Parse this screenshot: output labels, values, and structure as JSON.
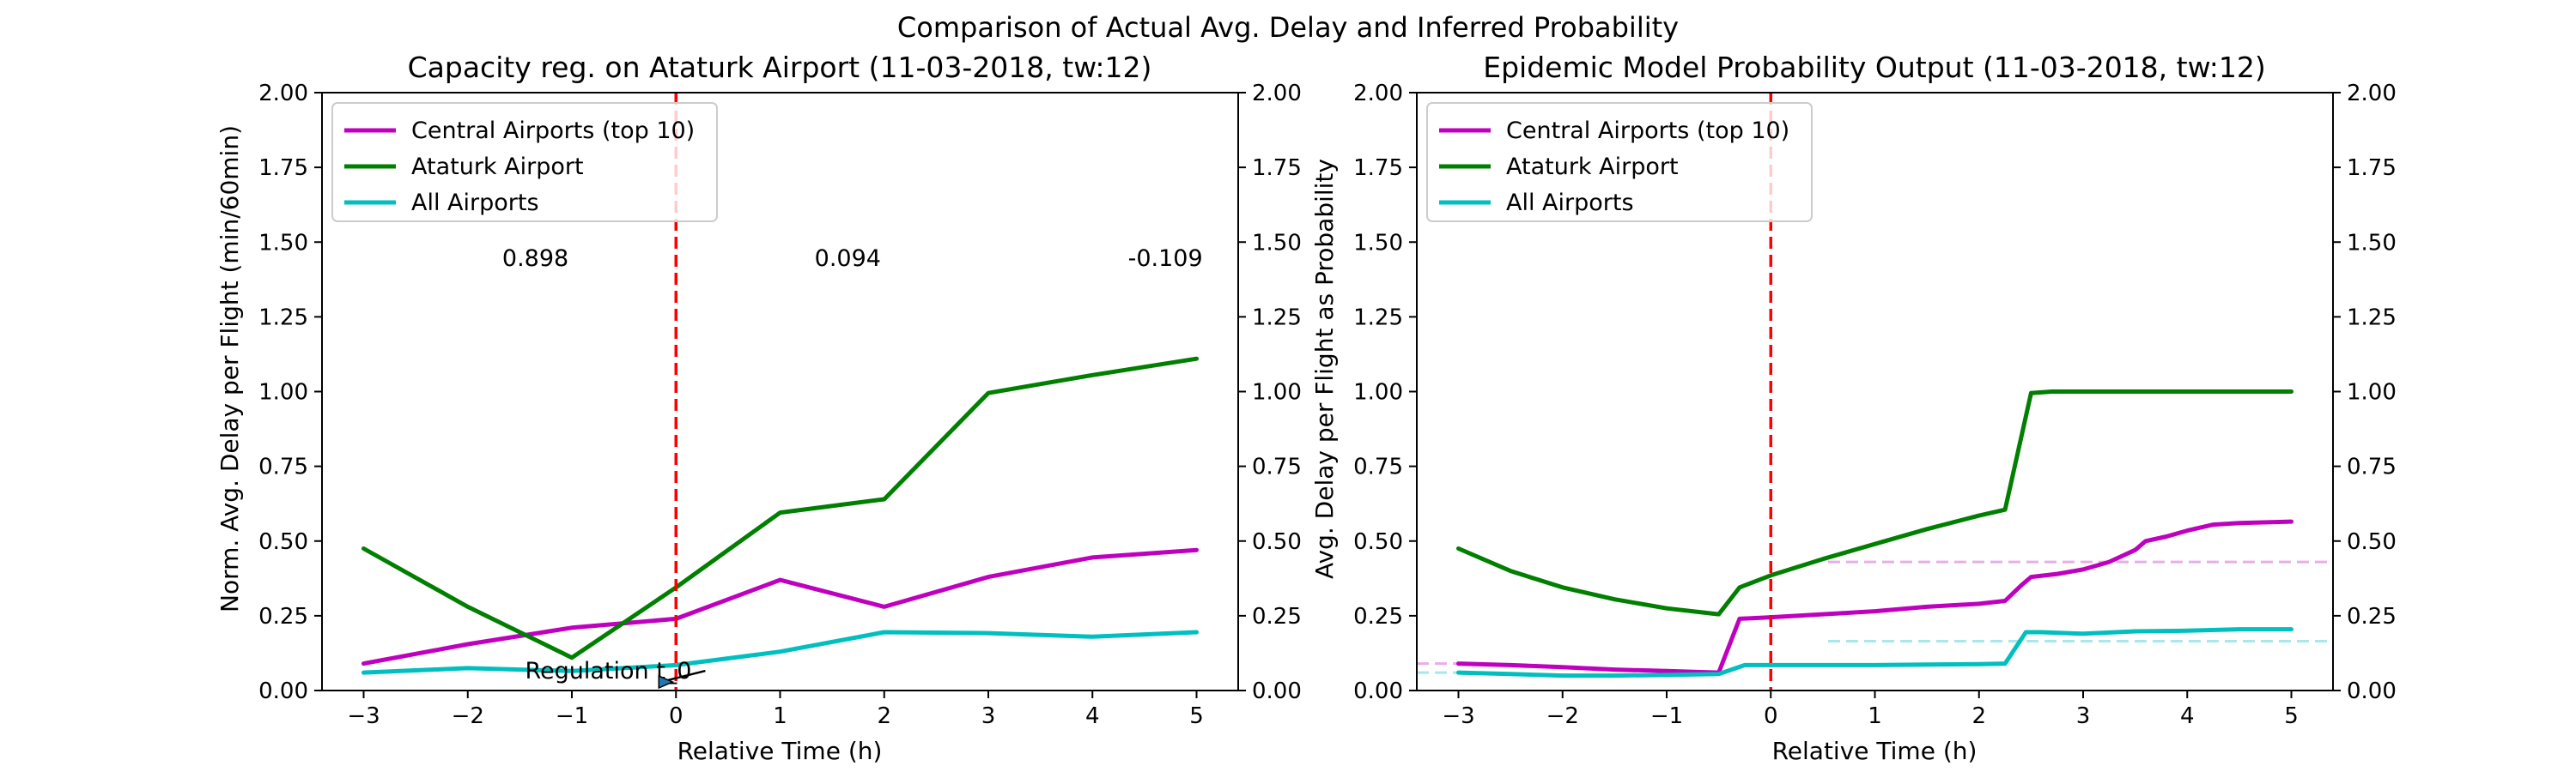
{
  "figure": {
    "suptitle": "Comparison of Actual Avg. Delay and Inferred Probability"
  },
  "chart_data": [
    {
      "type": "line",
      "title": "Capacity reg. on Ataturk Airport (11-03-2018, tw:12)",
      "xlabel": "Relative Time (h)",
      "ylabel": "Norm. Avg. Delay per Flight (min/60min)",
      "xlim": [
        -3.4,
        5.4
      ],
      "ylim": [
        0,
        2
      ],
      "xticks": [
        "−3",
        "−2",
        "−1",
        "0",
        "1",
        "2",
        "3",
        "4",
        "5"
      ],
      "yticks": [
        "0.00",
        "0.25",
        "0.50",
        "0.75",
        "1.00",
        "1.25",
        "1.50",
        "1.75",
        "2.00"
      ],
      "right_yticks": [
        "0.00",
        "0.25",
        "0.50",
        "0.75",
        "1.00",
        "1.25",
        "1.50",
        "1.75",
        "2.00"
      ],
      "legend_position": "upper-left",
      "series": [
        {
          "name": "Central Airports (top 10)",
          "color": "#bf00bf",
          "x": [
            -3,
            -2,
            -1,
            0,
            1,
            2,
            3,
            4,
            5
          ],
          "y": [
            0.09,
            0.155,
            0.21,
            0.24,
            0.37,
            0.28,
            0.38,
            0.445,
            0.47
          ]
        },
        {
          "name": "Ataturk Airport",
          "color": "#007f00",
          "x": [
            -3,
            -2,
            -1,
            0,
            1,
            2,
            3,
            4,
            5
          ],
          "y": [
            0.475,
            0.28,
            0.11,
            0.345,
            0.595,
            0.64,
            0.995,
            1.055,
            1.11
          ]
        },
        {
          "name": "All Airports",
          "color": "#00bfbf",
          "x": [
            -3,
            -2,
            -1,
            0,
            1,
            2,
            3,
            4,
            5
          ],
          "y": [
            0.06,
            0.075,
            0.065,
            0.085,
            0.13,
            0.195,
            0.192,
            0.18,
            0.195
          ]
        }
      ],
      "vline": {
        "x": 0,
        "color": "#ff0000",
        "style": "dashed"
      },
      "annotations": [
        {
          "text": "0.898",
          "x": -1.35,
          "y": 1.42
        },
        {
          "text": "0.094",
          "x": 1.65,
          "y": 1.42
        },
        {
          "text": "-0.109",
          "x": 4.7,
          "y": 1.42
        },
        {
          "text": "Regulation t_0",
          "x": -1.45,
          "y": 0.04,
          "arrow_to": [
            0,
            0.02
          ]
        }
      ]
    },
    {
      "type": "line",
      "title": "Epidemic Model Probability Output (11-03-2018, tw:12)",
      "xlabel": "Relative Time (h)",
      "ylabel": "Avg. Delay per Flight as Probability",
      "xlim": [
        -3.4,
        5.4
      ],
      "ylim": [
        0,
        2
      ],
      "xticks": [
        "−3",
        "−2",
        "−1",
        "0",
        "1",
        "2",
        "3",
        "4",
        "5"
      ],
      "yticks": [
        "0.00",
        "0.25",
        "0.50",
        "0.75",
        "1.00",
        "1.25",
        "1.50",
        "1.75",
        "2.00"
      ],
      "right_yticks": [
        "0.00",
        "0.25",
        "0.50",
        "0.75",
        "1.00",
        "1.25",
        "1.50",
        "1.75",
        "2.00"
      ],
      "legend_position": "upper-left",
      "series": [
        {
          "name": "Central Airports (top 10)",
          "color": "#bf00bf",
          "x": [
            -3,
            -2.5,
            -2,
            -1.5,
            -1,
            -0.5,
            -0.3,
            0,
            0.5,
            1,
            1.5,
            2,
            2.25,
            2.4,
            2.5,
            2.75,
            3,
            3.25,
            3.5,
            3.6,
            3.8,
            4,
            4.25,
            4.5,
            5
          ],
          "y": [
            0.09,
            0.085,
            0.078,
            0.07,
            0.065,
            0.06,
            0.24,
            0.245,
            0.255,
            0.265,
            0.28,
            0.29,
            0.3,
            0.35,
            0.38,
            0.39,
            0.405,
            0.43,
            0.47,
            0.5,
            0.515,
            0.535,
            0.555,
            0.56,
            0.565
          ]
        },
        {
          "name": "Ataturk Airport",
          "color": "#007f00",
          "x": [
            -3,
            -2.5,
            -2,
            -1.5,
            -1,
            -0.5,
            -0.3,
            0,
            0.5,
            1,
            1.5,
            2,
            2.25,
            2.5,
            2.7,
            3,
            3.5,
            4,
            4.5,
            5
          ],
          "y": [
            0.475,
            0.4,
            0.345,
            0.305,
            0.275,
            0.255,
            0.345,
            0.385,
            0.44,
            0.49,
            0.54,
            0.585,
            0.605,
            0.995,
            1.0,
            1.0,
            1.0,
            1.0,
            1.0,
            1.0
          ]
        },
        {
          "name": "All Airports",
          "color": "#00bfbf",
          "x": [
            -3,
            -2.5,
            -2,
            -1.5,
            -1,
            -0.5,
            -0.25,
            0,
            0.5,
            1,
            1.5,
            2,
            2.25,
            2.45,
            2.6,
            3,
            3.5,
            4,
            4.5,
            5
          ],
          "y": [
            0.06,
            0.055,
            0.05,
            0.05,
            0.052,
            0.055,
            0.085,
            0.085,
            0.085,
            0.085,
            0.087,
            0.088,
            0.09,
            0.195,
            0.195,
            0.19,
            0.198,
            0.2,
            0.205,
            0.205
          ]
        }
      ],
      "reference_lines": [
        {
          "y": 0.43,
          "x_from": 0.55,
          "x_to": 5.4,
          "color": "#e8aee8",
          "style": "dashed"
        },
        {
          "y": 0.165,
          "x_from": 0.55,
          "x_to": 5.4,
          "color": "#a8e8e8",
          "style": "dashed"
        },
        {
          "y": 0.09,
          "x_from": -3.4,
          "x_to": -3.0,
          "color": "#e8aee8",
          "style": "dashed"
        },
        {
          "y": 0.06,
          "x_from": -3.4,
          "x_to": -3.0,
          "color": "#a8e8e8",
          "style": "dashed"
        }
      ],
      "vline": {
        "x": 0,
        "color": "#ff0000",
        "style": "dashed"
      }
    }
  ]
}
